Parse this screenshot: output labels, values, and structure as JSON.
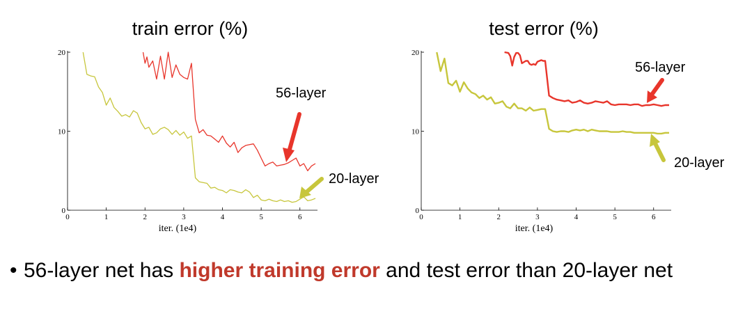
{
  "colors": {
    "layer56": "#e8352b",
    "layer20": "#c7c63c",
    "highlight": "#c0392b"
  },
  "chart_data": [
    {
      "type": "line",
      "title": "train error (%)",
      "xlabel": "iter. (1e4)",
      "ylabel": "",
      "xlim": [
        0,
        6.4
      ],
      "ylim": [
        0,
        20
      ],
      "xticks": [
        "0",
        "1",
        "2",
        "3",
        "4",
        "5",
        "6"
      ],
      "yticks": [
        "0",
        "10",
        "20"
      ],
      "series": [
        {
          "name": "56-layer",
          "color": "#e8352b",
          "x": [
            1.95,
            2.0,
            2.05,
            2.1,
            2.2,
            2.3,
            2.4,
            2.5,
            2.6,
            2.7,
            2.8,
            2.9,
            3.0,
            3.1,
            3.2,
            3.3,
            3.4,
            3.5,
            3.6,
            3.7,
            3.8,
            3.9,
            4.0,
            4.1,
            4.2,
            4.3,
            4.4,
            4.5,
            4.6,
            4.7,
            4.8,
            4.9,
            5.0,
            5.1,
            5.2,
            5.3,
            5.4,
            5.5,
            5.6,
            5.7,
            5.8,
            5.9,
            6.0,
            6.1,
            6.2,
            6.3,
            6.4
          ],
          "y": [
            20,
            18.6,
            19.4,
            18.1,
            18.9,
            16.6,
            19.5,
            16.6,
            20,
            16.8,
            18.4,
            17.2,
            16.8,
            16.6,
            18.6,
            11.5,
            9.8,
            10.2,
            9.5,
            9.4,
            9.0,
            8.6,
            9.4,
            8.5,
            8.0,
            8.6,
            7.3,
            7.9,
            8.2,
            8.3,
            8.4,
            7.6,
            6.6,
            5.6,
            5.9,
            6.1,
            5.6,
            5.7,
            5.8,
            6.0,
            6.3,
            6.6,
            5.6,
            5.9,
            5.0,
            5.6,
            5.9
          ]
        },
        {
          "name": "20-layer",
          "color": "#c7c63c",
          "x": [
            0.4,
            0.5,
            0.6,
            0.7,
            0.8,
            0.9,
            1.0,
            1.1,
            1.2,
            1.3,
            1.4,
            1.5,
            1.6,
            1.7,
            1.8,
            1.9,
            2.0,
            2.1,
            2.2,
            2.3,
            2.4,
            2.5,
            2.6,
            2.7,
            2.8,
            2.9,
            3.0,
            3.1,
            3.2,
            3.3,
            3.4,
            3.5,
            3.6,
            3.7,
            3.8,
            3.9,
            4.0,
            4.1,
            4.2,
            4.3,
            4.4,
            4.5,
            4.6,
            4.7,
            4.8,
            4.9,
            5.0,
            5.1,
            5.2,
            5.3,
            5.4,
            5.5,
            5.6,
            5.7,
            5.8,
            5.9,
            6.0,
            6.1,
            6.2,
            6.3,
            6.4
          ],
          "y": [
            20,
            17.2,
            17.0,
            16.9,
            15.6,
            14.9,
            13.3,
            14.2,
            13.0,
            12.5,
            11.9,
            12.1,
            11.8,
            12.6,
            12.3,
            11.1,
            10.3,
            10.5,
            9.6,
            9.8,
            10.3,
            10.5,
            10.2,
            9.6,
            10.1,
            9.5,
            9.9,
            9.1,
            9.4,
            4.1,
            3.6,
            3.5,
            3.4,
            2.8,
            2.9,
            2.6,
            2.5,
            2.2,
            2.6,
            2.5,
            2.3,
            2.2,
            2.6,
            2.3,
            1.6,
            1.9,
            1.3,
            1.2,
            1.4,
            1.2,
            1.1,
            1.3,
            1.1,
            1.2,
            1.0,
            1.1,
            1.4,
            1.7,
            1.2,
            1.3,
            1.5
          ]
        }
      ],
      "annotations": [
        "56-layer",
        "20-layer"
      ]
    },
    {
      "type": "line",
      "title": "test error (%)",
      "xlabel": "iter. (1e4)",
      "ylabel": "",
      "xlim": [
        0,
        6.4
      ],
      "ylim": [
        0,
        20
      ],
      "xticks": [
        "0",
        "1",
        "2",
        "3",
        "4",
        "5",
        "6"
      ],
      "yticks": [
        "0",
        "10",
        "20"
      ],
      "series": [
        {
          "name": "56-layer",
          "color": "#e8352b",
          "x": [
            2.15,
            2.25,
            2.3,
            2.35,
            2.4,
            2.45,
            2.5,
            2.55,
            2.6,
            2.7,
            2.75,
            2.8,
            2.85,
            2.9,
            2.95,
            3.0,
            3.05,
            3.1,
            3.15,
            3.2,
            3.3,
            3.4,
            3.5,
            3.6,
            3.7,
            3.8,
            3.9,
            4.0,
            4.1,
            4.2,
            4.3,
            4.4,
            4.5,
            4.6,
            4.7,
            4.8,
            4.9,
            5.0,
            5.1,
            5.2,
            5.3,
            5.4,
            5.5,
            5.6,
            5.7,
            5.8,
            5.9,
            6.0,
            6.1,
            6.2,
            6.3,
            6.4
          ],
          "y": [
            20,
            19.9,
            19.5,
            18.3,
            19.4,
            19.9,
            19.9,
            19.6,
            18.6,
            18.9,
            18.9,
            18.5,
            18.4,
            18.5,
            18.4,
            18.8,
            18.9,
            19.0,
            18.9,
            18.9,
            14.5,
            14.2,
            14.0,
            13.9,
            13.8,
            13.9,
            13.6,
            13.7,
            13.9,
            13.6,
            13.5,
            13.6,
            13.8,
            13.7,
            13.6,
            13.8,
            13.4,
            13.3,
            13.4,
            13.4,
            13.4,
            13.3,
            13.4,
            13.4,
            13.2,
            13.3,
            13.3,
            13.4,
            13.3,
            13.2,
            13.3,
            13.3
          ]
        },
        {
          "name": "20-layer",
          "color": "#c7c63c",
          "x": [
            0.4,
            0.5,
            0.6,
            0.7,
            0.8,
            0.9,
            1.0,
            1.1,
            1.2,
            1.3,
            1.4,
            1.5,
            1.6,
            1.7,
            1.8,
            1.9,
            2.0,
            2.1,
            2.2,
            2.3,
            2.4,
            2.5,
            2.6,
            2.7,
            2.8,
            2.9,
            3.0,
            3.1,
            3.2,
            3.3,
            3.4,
            3.5,
            3.6,
            3.7,
            3.8,
            3.9,
            4.0,
            4.1,
            4.2,
            4.3,
            4.4,
            4.5,
            4.6,
            4.7,
            4.8,
            4.9,
            5.0,
            5.1,
            5.2,
            5.3,
            5.4,
            5.5,
            5.6,
            5.7,
            5.8,
            5.9,
            6.0,
            6.1,
            6.2,
            6.3,
            6.4
          ],
          "y": [
            20,
            17.6,
            19.2,
            16.1,
            15.8,
            16.4,
            15.0,
            16.2,
            15.4,
            14.9,
            14.7,
            14.2,
            14.5,
            14.0,
            14.3,
            13.5,
            13.6,
            13.8,
            13.1,
            12.9,
            13.5,
            12.9,
            12.9,
            12.6,
            13.0,
            12.6,
            12.7,
            12.8,
            12.8,
            10.3,
            10.0,
            9.9,
            10.0,
            10.0,
            9.9,
            10.1,
            10.2,
            10.1,
            10.2,
            10.0,
            10.2,
            10.1,
            10.0,
            10.0,
            10.0,
            9.9,
            9.9,
            9.9,
            10.0,
            9.9,
            9.9,
            9.8,
            9.8,
            9.8,
            9.8,
            9.8,
            9.8,
            9.7,
            9.7,
            9.8,
            9.8
          ]
        }
      ],
      "annotations": [
        "56-layer",
        "20-layer"
      ]
    }
  ],
  "bullet": {
    "symbol": "•",
    "before": "56-layer net has ",
    "highlight": "higher training error",
    "after": " and test error than 20-layer net"
  }
}
